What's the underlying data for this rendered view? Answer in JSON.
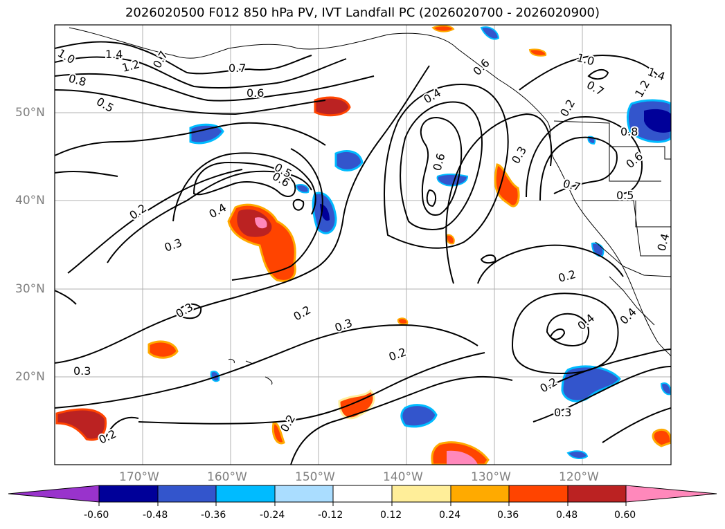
{
  "title": "2026020500 F012 850 hPa PV, IVT Landfall PC (2026020700 - 2026020900)",
  "map": {
    "lon_range": [
      -180,
      -110
    ],
    "lat_range": [
      10,
      60
    ],
    "gridlines": true,
    "lon_ticks": [
      "170°W",
      "160°W",
      "150°W",
      "140°W",
      "130°W",
      "120°W"
    ],
    "lat_ticks": [
      "50°N",
      "40°N",
      "30°N",
      "20°N"
    ],
    "contour_labels": [
      "1.4",
      "1.2",
      "1.0",
      "0.7",
      "0.8",
      "0.5",
      "0.7",
      "0.6",
      "0.5",
      "0.6",
      "0.2",
      "0.4",
      "0.3",
      "0.2",
      "0.3",
      "0.3",
      "0.2",
      "0.2",
      "0.3",
      "0.2",
      "0.2",
      "0.4",
      "0.6",
      "0.3",
      "0.7",
      "0.5",
      "0.4",
      "0.2",
      "0.4",
      "0.2",
      "0.3",
      "0.8",
      "0.6",
      "1.0",
      "1.4",
      "0.7",
      "1.2",
      "0.4",
      "0.6"
    ]
  },
  "colorbar": {
    "ticks": [
      "-0.60",
      "-0.48",
      "-0.36",
      "-0.24",
      "-0.12",
      "0.12",
      "0.24",
      "0.36",
      "0.48",
      "0.60"
    ],
    "colors": [
      "#9933cc",
      "#000099",
      "#3355cc",
      "#00bbff",
      "#aaddff",
      "#ffffff",
      "#ffee99",
      "#ffaa00",
      "#ff4400",
      "#bb2222",
      "#ff88bb"
    ],
    "extend": "both"
  },
  "chart_data": {
    "type": "contour-map",
    "fields": [
      "850 hPa PV (contours)",
      "IVT Landfall PC (shaded)"
    ],
    "shaded_range": [
      -0.6,
      0.6
    ],
    "shaded_interval": 0.12
  }
}
